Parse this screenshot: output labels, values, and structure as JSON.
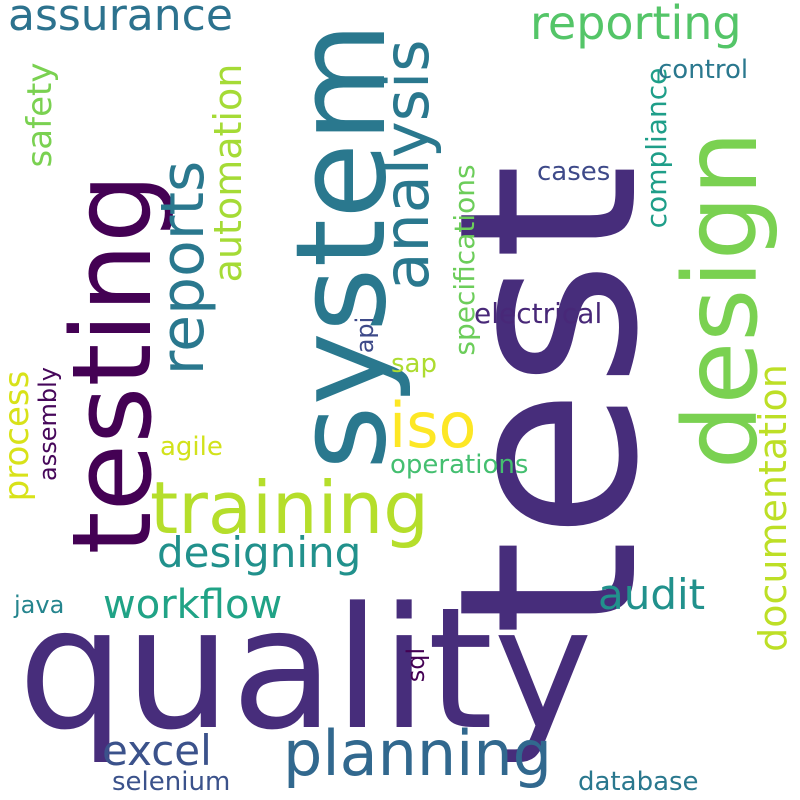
{
  "words": [
    {
      "text": "test",
      "color": "#472d7b"
    },
    {
      "text": "quality",
      "color": "#472d7b"
    },
    {
      "text": "system",
      "color": "#2a788e"
    },
    {
      "text": "testing",
      "color": "#440154"
    },
    {
      "text": "design",
      "color": "#7ad151"
    },
    {
      "text": "training",
      "color": "#b5de2b"
    },
    {
      "text": "planning",
      "color": "#31688e"
    },
    {
      "text": "analysis",
      "color": "#2a788e"
    },
    {
      "text": "reports",
      "color": "#2a788e"
    },
    {
      "text": "reporting",
      "color": "#54c568"
    },
    {
      "text": "assurance",
      "color": "#2c728e"
    },
    {
      "text": "designing",
      "color": "#21918c"
    },
    {
      "text": "workflow",
      "color": "#20a386"
    },
    {
      "text": "documentation",
      "color": "#bddf26"
    },
    {
      "text": "automation",
      "color": "#a5db36"
    },
    {
      "text": "iso",
      "color": "#fde725"
    },
    {
      "text": "excel",
      "color": "#3b528b"
    },
    {
      "text": "audit",
      "color": "#21918c"
    },
    {
      "text": "process",
      "color": "#d8e219"
    },
    {
      "text": "safety",
      "color": "#7ad151"
    },
    {
      "text": "compliance",
      "color": "#1f9e89"
    },
    {
      "text": "specifications",
      "color": "#6ccd5a"
    },
    {
      "text": "electrical",
      "color": "#482878"
    },
    {
      "text": "control",
      "color": "#2a788e"
    },
    {
      "text": "cases",
      "color": "#3e4a89"
    },
    {
      "text": "operations",
      "color": "#44bf70"
    },
    {
      "text": "selenium",
      "color": "#3b528b"
    },
    {
      "text": "database",
      "color": "#2a788e"
    },
    {
      "text": "assembly",
      "color": "#46075a"
    },
    {
      "text": "agile",
      "color": "#d2e21b"
    },
    {
      "text": "java",
      "color": "#25858e"
    },
    {
      "text": "sap",
      "color": "#addc30"
    },
    {
      "text": "api",
      "color": "#3e4a89"
    },
    {
      "text": "sql",
      "color": "#440154"
    }
  ]
}
